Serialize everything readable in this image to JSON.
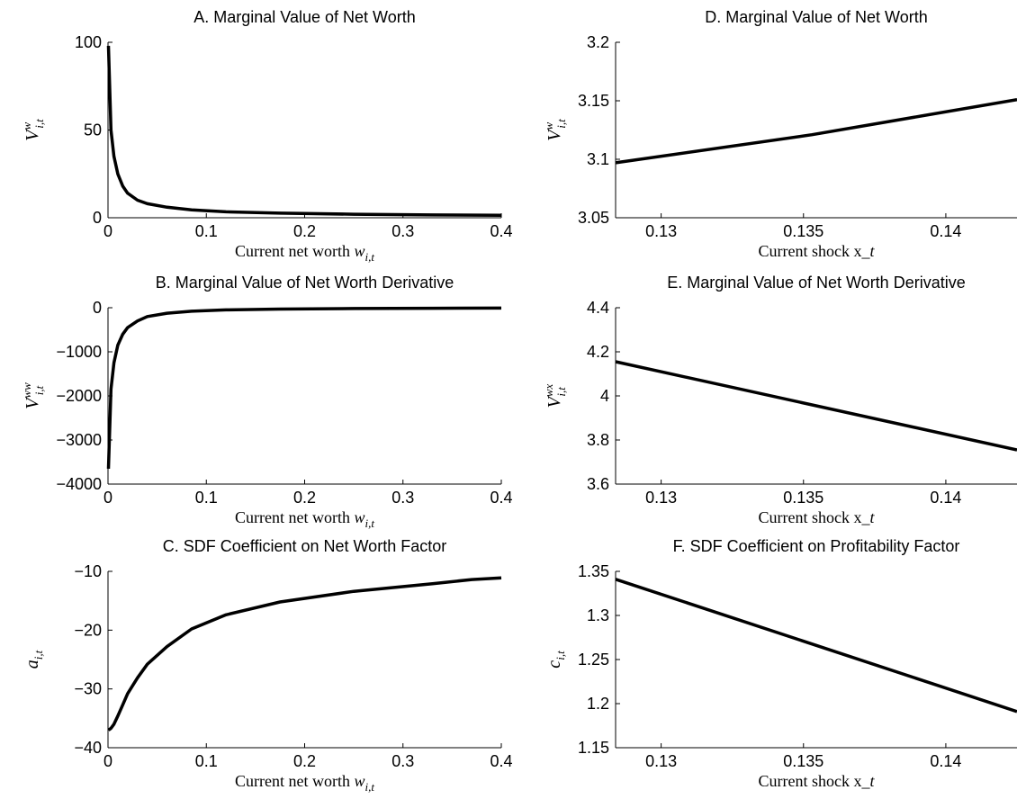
{
  "chart_data": [
    {
      "panel": "A",
      "type": "line",
      "title": "A. Marginal Value of Net Worth",
      "xlabel": "Current net worth w_{i,t}",
      "ylabel": "V^{w}_{i,t}",
      "xlim": [
        0,
        0.4
      ],
      "ylim": [
        0,
        100
      ],
      "xticks": [
        0,
        0.1,
        0.2,
        0.3,
        0.4
      ],
      "yticks": [
        0,
        50,
        100
      ],
      "xtick_labels": [
        "0",
        "0.1",
        "0.2",
        "0.3",
        "0.4"
      ],
      "ytick_labels": [
        "0",
        "50",
        "100"
      ],
      "grid": false,
      "x": [
        0.0005,
        0.003,
        0.006,
        0.01,
        0.015,
        0.02,
        0.03,
        0.04,
        0.06,
        0.085,
        0.12,
        0.175,
        0.25,
        0.33,
        0.4
      ],
      "y": [
        98,
        50,
        35,
        25,
        18,
        14,
        10,
        8,
        6,
        4.5,
        3.4,
        2.6,
        2.0,
        1.6,
        1.4
      ]
    },
    {
      "panel": "B",
      "type": "line",
      "title": "B. Marginal Value of Net Worth Derivative",
      "xlabel": "Current net worth w_{i,t}",
      "ylabel": "V^{ww}_{i,t}",
      "xlim": [
        0,
        0.4
      ],
      "ylim": [
        -4000,
        0
      ],
      "xticks": [
        0,
        0.1,
        0.2,
        0.3,
        0.4
      ],
      "yticks": [
        -4000,
        -3000,
        -2000,
        -1000,
        0
      ],
      "xtick_labels": [
        "0",
        "0.1",
        "0.2",
        "0.3",
        "0.4"
      ],
      "ytick_labels": [
        "−4000",
        "−3000",
        "−2000",
        "−1000",
        "0"
      ],
      "grid": false,
      "x": [
        0.0005,
        0.003,
        0.006,
        0.01,
        0.015,
        0.02,
        0.03,
        0.04,
        0.06,
        0.085,
        0.12,
        0.175,
        0.25,
        0.33,
        0.4
      ],
      "y": [
        -3650,
        -1850,
        -1250,
        -850,
        -600,
        -450,
        -300,
        -200,
        -125,
        -80,
        -50,
        -30,
        -18,
        -12,
        -9
      ]
    },
    {
      "panel": "C",
      "type": "line",
      "title": "C. SDF Coefficient on Net Worth Factor",
      "xlabel": "Current net worth w_{i,t}",
      "ylabel": "a_{i,t}",
      "xlim": [
        0,
        0.4
      ],
      "ylim": [
        -40,
        -10
      ],
      "xticks": [
        0,
        0.1,
        0.2,
        0.3,
        0.4
      ],
      "yticks": [
        -40,
        -30,
        -20,
        -10
      ],
      "xtick_labels": [
        "0",
        "0.1",
        "0.2",
        "0.3",
        "0.4"
      ],
      "ytick_labels": [
        "−40",
        "−30",
        "−20",
        "−10"
      ],
      "grid": false,
      "x": [
        0.0005,
        0.003,
        0.006,
        0.01,
        0.015,
        0.02,
        0.03,
        0.04,
        0.06,
        0.085,
        0.12,
        0.175,
        0.25,
        0.33,
        0.37,
        0.4
      ],
      "y": [
        -37,
        -36.7,
        -36,
        -34.6,
        -32.7,
        -30.8,
        -28.1,
        -25.8,
        -22.8,
        -19.8,
        -17.4,
        -15.2,
        -13.4,
        -12.1,
        -11.4,
        -11.1
      ]
    },
    {
      "panel": "D",
      "type": "line",
      "title": "D. Marginal Value of Net Worth",
      "xlabel": "Current shock x_t",
      "ylabel": "V^{w}_{i,t}",
      "xlim": [
        0.1284,
        0.1425
      ],
      "ylim": [
        3.05,
        3.2
      ],
      "xticks": [
        0.13,
        0.135,
        0.14
      ],
      "yticks": [
        3.05,
        3.1,
        3.15,
        3.2
      ],
      "xtick_labels": [
        "0.13",
        "0.135",
        "0.14"
      ],
      "ytick_labels": [
        "3.05",
        "3.1",
        "3.15",
        "3.2"
      ],
      "grid": false,
      "x": [
        0.1284,
        0.1353,
        0.1425
      ],
      "y": [
        3.097,
        3.121,
        3.151
      ]
    },
    {
      "panel": "E",
      "type": "line",
      "title": "E. Marginal Value of Net Worth Derivative",
      "xlabel": "Current shock x_t",
      "ylabel": "V^{wx}_{i,t}",
      "xlim": [
        0.1284,
        0.1425
      ],
      "ylim": [
        3.6,
        4.4
      ],
      "xticks": [
        0.13,
        0.135,
        0.14
      ],
      "yticks": [
        3.6,
        3.8,
        4,
        4.2,
        4.4
      ],
      "xtick_labels": [
        "0.13",
        "0.135",
        "0.14"
      ],
      "ytick_labels": [
        "3.6",
        "3.8",
        "4",
        "4.2",
        "4.4"
      ],
      "grid": false,
      "x": [
        0.1284,
        0.1425
      ],
      "y": [
        4.155,
        3.755
      ]
    },
    {
      "panel": "F",
      "type": "line",
      "title": "F. SDF Coefficient on Profitability Factor",
      "xlabel": "Current shock x_t",
      "ylabel": "c_{i,t}",
      "xlim": [
        0.1284,
        0.1425
      ],
      "ylim": [
        1.15,
        1.35
      ],
      "xticks": [
        0.13,
        0.135,
        0.14
      ],
      "yticks": [
        1.15,
        1.2,
        1.25,
        1.3,
        1.35
      ],
      "xtick_labels": [
        "0.13",
        "0.135",
        "0.14"
      ],
      "ytick_labels": [
        "1.15",
        "1.2",
        "1.25",
        "1.3",
        "1.35"
      ],
      "grid": false,
      "x": [
        0.1284,
        0.1425
      ],
      "y": [
        1.341,
        1.191
      ]
    }
  ]
}
